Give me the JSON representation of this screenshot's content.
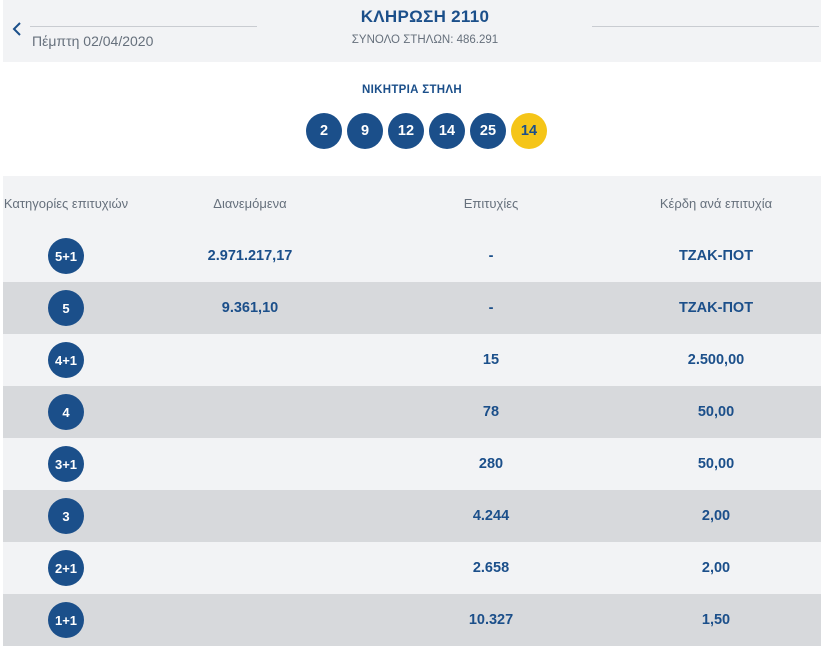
{
  "header": {
    "date": "Πέμπτη 02/04/2020",
    "title": "ΚΛΗΡΩΣΗ 2110",
    "total_columns": "ΣΥΝΟΛΟ ΣΤΗΛΩΝ: 486.291"
  },
  "winning": {
    "label": "ΝΙΚΗΤΡΙΑ ΣΤΗΛΗ",
    "numbers": [
      "2",
      "9",
      "12",
      "14",
      "25"
    ],
    "joker": "14"
  },
  "table": {
    "headers": {
      "category": "Κατηγορίες επιτυχιών",
      "distributed": "Διανεμόμενα",
      "winners": "Επιτυχίες",
      "prize": "Κέρδη ανά επιτυχία"
    },
    "rows": [
      {
        "category": "5+1",
        "distributed": "2.971.217,17",
        "winners": "-",
        "prize": "ΤΖΑΚ-ΠΟΤ"
      },
      {
        "category": "5",
        "distributed": "9.361,10",
        "winners": "-",
        "prize": "ΤΖΑΚ-ΠΟΤ"
      },
      {
        "category": "4+1",
        "distributed": "",
        "winners": "15",
        "prize": "2.500,00"
      },
      {
        "category": "4",
        "distributed": "",
        "winners": "78",
        "prize": "50,00"
      },
      {
        "category": "3+1",
        "distributed": "",
        "winners": "280",
        "prize": "50,00"
      },
      {
        "category": "3",
        "distributed": "",
        "winners": "4.244",
        "prize": "2,00"
      },
      {
        "category": "2+1",
        "distributed": "",
        "winners": "2.658",
        "prize": "2,00"
      },
      {
        "category": "1+1",
        "distributed": "",
        "winners": "10.327",
        "prize": "1,50"
      }
    ]
  },
  "colors": {
    "primary": "#1b4f8a",
    "joker": "#f5c518",
    "row_light": "#f2f3f5",
    "row_dark": "#d7d9dc"
  }
}
